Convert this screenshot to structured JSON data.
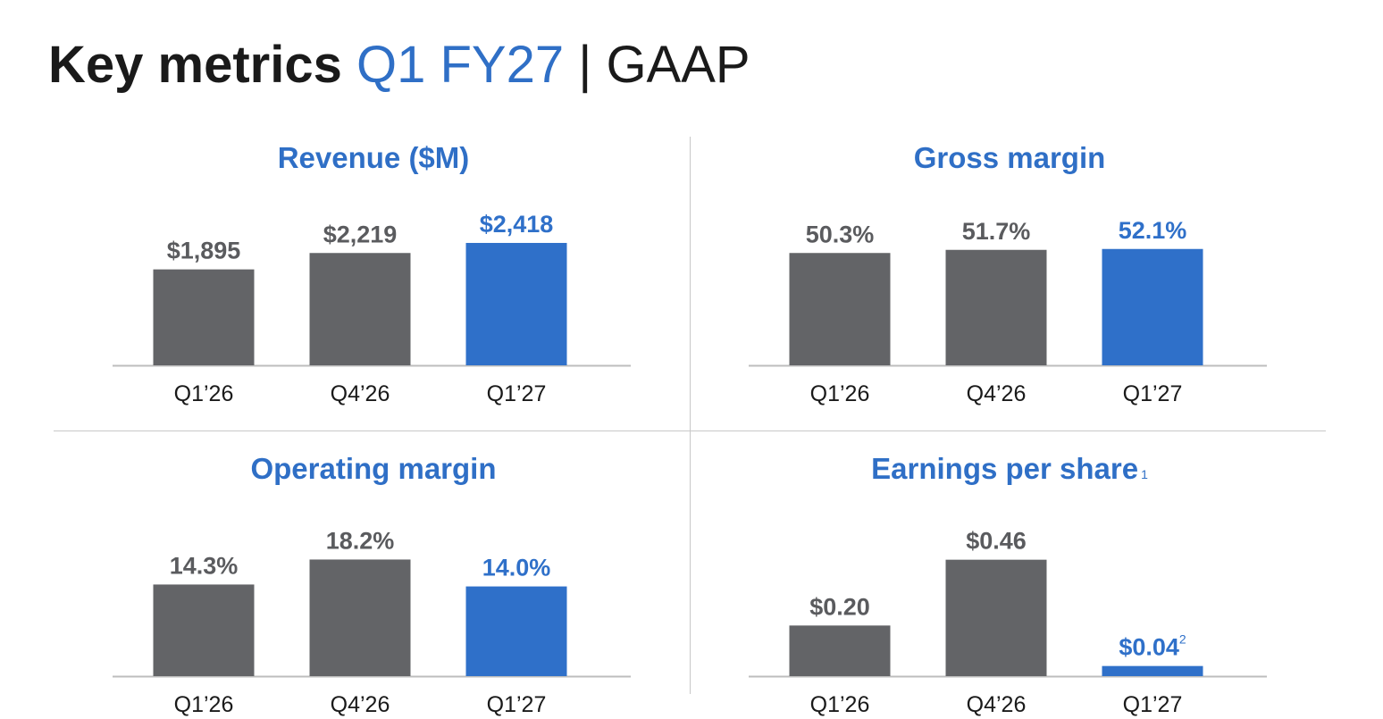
{
  "header": {
    "title_main": "Key metrics",
    "title_highlight": "Q1 FY27",
    "title_separator": "|",
    "title_suffix": "GAAP"
  },
  "colors": {
    "accent": "#2f6fc6",
    "bar_gray": "#636467",
    "bar_highlight": "#2f70c9",
    "label_gray": "#5a5b5e",
    "divider": "#c8c8c8"
  },
  "chart_data": [
    {
      "type": "bar",
      "title": "Revenue ($M)",
      "categories": [
        "Q1’26",
        "Q4’26",
        "Q1’27"
      ],
      "values": [
        1895,
        2219,
        2418
      ],
      "labels": [
        "$1,895",
        "$2,219",
        "$2,418"
      ],
      "highlight_index": 2,
      "ylim": [
        0,
        3000
      ]
    },
    {
      "type": "bar",
      "title": "Gross margin",
      "categories": [
        "Q1’26",
        "Q4’26",
        "Q1’27"
      ],
      "values": [
        50.3,
        51.7,
        52.1
      ],
      "labels": [
        "50.3%",
        "51.7%",
        "52.1%"
      ],
      "highlight_index": 2,
      "ylim": [
        0,
        68
      ]
    },
    {
      "type": "bar",
      "title": "Operating margin",
      "categories": [
        "Q1’26",
        "Q4’26",
        "Q1’27"
      ],
      "values": [
        14.3,
        18.2,
        14.0
      ],
      "labels": [
        "14.3%",
        "18.2%",
        "14.0%"
      ],
      "highlight_index": 2,
      "ylim": [
        0,
        23.7
      ]
    },
    {
      "type": "bar",
      "title": "Earnings per share",
      "title_superscript": "1",
      "categories": [
        "Q1’26",
        "Q4’26",
        "Q1’27"
      ],
      "values": [
        0.2,
        0.46,
        0.04
      ],
      "labels": [
        "$0.20",
        "$0.46",
        "$0.04"
      ],
      "label_superscripts": [
        "",
        "",
        "2"
      ],
      "highlight_index": 2,
      "ylim": [
        0,
        0.6
      ]
    }
  ]
}
